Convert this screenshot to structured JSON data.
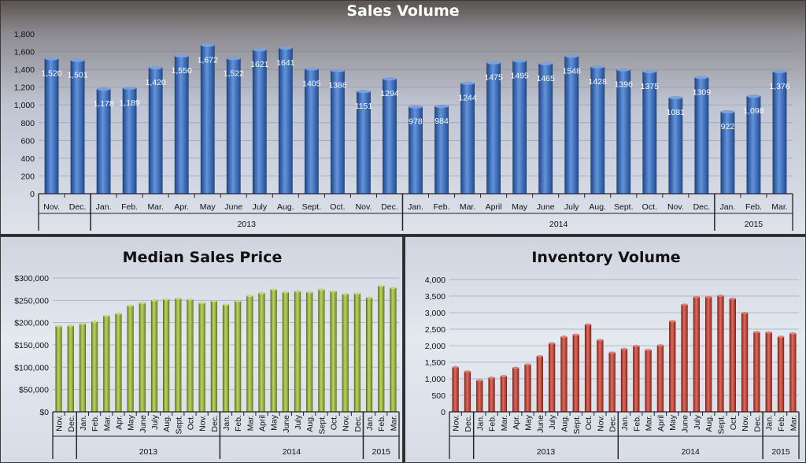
{
  "chart_data": [
    {
      "type": "bar",
      "title": "Sales Volume",
      "categories": [
        "Nov.",
        "Dec.",
        "Jan.",
        "Feb.",
        "Mar.",
        "Apr.",
        "May",
        "June",
        "July",
        "Aug.",
        "Sept.",
        "Oct.",
        "Nov.",
        "Dec.",
        "Jan.",
        "Feb.",
        "Mar.",
        "April",
        "May",
        "June",
        "July",
        "Aug.",
        "Sept.",
        "Oct.",
        "Nov.",
        "Dec.",
        "Jan.",
        "Feb.",
        "Mar."
      ],
      "values": [
        1520,
        1501,
        1178,
        1189,
        1420,
        1550,
        1672,
        1522,
        1621,
        1641,
        1405,
        1386,
        1151,
        1294,
        978,
        984,
        1244,
        1475,
        1495,
        1465,
        1548,
        1428,
        1396,
        1375,
        1081,
        1309,
        922,
        1098,
        1376
      ],
      "data_labels": [
        "1,520",
        "1,501",
        "1,178",
        "1,189",
        "1,420",
        "1,550",
        "1,672",
        "1,522",
        "1621",
        "1641",
        "1405",
        "1386",
        "1151",
        "1294",
        "978",
        "984",
        "1244",
        "1475",
        "1495",
        "1465",
        "1548",
        "1428",
        "1396",
        "1375",
        "1081",
        "1309",
        "922",
        "1,098",
        "1,376"
      ],
      "groups": [
        {
          "label": "",
          "start": 0,
          "end": 1
        },
        {
          "label": "2013",
          "start": 2,
          "end": 13
        },
        {
          "label": "2014",
          "start": 14,
          "end": 25
        },
        {
          "label": "2015",
          "start": 26,
          "end": 28
        }
      ],
      "yticks": [
        "0",
        "200",
        "400",
        "600",
        "800",
        "1,000",
        "1,200",
        "1,400",
        "1,600",
        "1,800"
      ],
      "ylim": [
        0,
        1800
      ],
      "color": "#2f6fd2",
      "grid": true
    },
    {
      "type": "bar",
      "title": "Median Sales Price",
      "categories": [
        "Nov.",
        "Dec.",
        "Jan.",
        "Feb.",
        "Mar.",
        "Apr.",
        "May",
        "June",
        "July",
        "Aug.",
        "Sept.",
        "Oct.",
        "Nov.",
        "Dec.",
        "Jan.",
        "Feb.",
        "Mar.",
        "April",
        "May",
        "June",
        "July",
        "Aug.",
        "Sept.",
        "Oct.",
        "Nov.",
        "Dec.",
        "Jan.",
        "Feb.",
        "Mar."
      ],
      "values": [
        192000,
        193000,
        197000,
        202000,
        215000,
        220000,
        238000,
        244000,
        250000,
        252000,
        254000,
        252000,
        244000,
        248000,
        240000,
        248000,
        260000,
        266000,
        274000,
        268000,
        270000,
        268000,
        274000,
        270000,
        264000,
        265000,
        256000,
        282000,
        278000
      ],
      "groups": [
        {
          "label": "",
          "start": 0,
          "end": 1
        },
        {
          "label": "2013",
          "start": 2,
          "end": 13
        },
        {
          "label": "2014",
          "start": 14,
          "end": 25
        },
        {
          "label": "2015",
          "start": 26,
          "end": 28
        }
      ],
      "yticks": [
        "$0",
        "$50,000",
        "$100,000",
        "$150,000",
        "$200,000",
        "$250,000",
        "$300,000"
      ],
      "ylim": [
        0,
        300000
      ],
      "color": "#a6c632",
      "grid": true
    },
    {
      "type": "bar",
      "title": "Inventory Volume",
      "categories": [
        "Nov.",
        "Dec.",
        "Jan.",
        "Feb.",
        "Mar.",
        "Apr.",
        "May",
        "June",
        "July",
        "Aug.",
        "Sept.",
        "Oct.",
        "Nov.",
        "Dec.",
        "Jan.",
        "Feb.",
        "Mar.",
        "April",
        "May",
        "June",
        "July",
        "Aug.",
        "Sept.",
        "Oct.",
        "Nov.",
        "Dec.",
        "Jan.",
        "Feb.",
        "Mar."
      ],
      "values": [
        1350,
        1220,
        950,
        1030,
        1080,
        1330,
        1430,
        1680,
        2070,
        2270,
        2330,
        2640,
        2170,
        1790,
        1900,
        1990,
        1870,
        2010,
        2740,
        3240,
        3470,
        3470,
        3510,
        3420,
        2990,
        2410,
        2400,
        2270,
        2370
      ],
      "groups": [
        {
          "label": "",
          "start": 0,
          "end": 1
        },
        {
          "label": "2013",
          "start": 2,
          "end": 13
        },
        {
          "label": "2014",
          "start": 14,
          "end": 25
        },
        {
          "label": "2015",
          "start": 26,
          "end": 28
        }
      ],
      "yticks": [
        "0",
        "500",
        "1,000",
        "1,500",
        "2,000",
        "2,500",
        "3,000",
        "3,500",
        "4,000"
      ],
      "ylim": [
        0,
        4000
      ],
      "color": "#d63a2a",
      "grid": true
    }
  ]
}
